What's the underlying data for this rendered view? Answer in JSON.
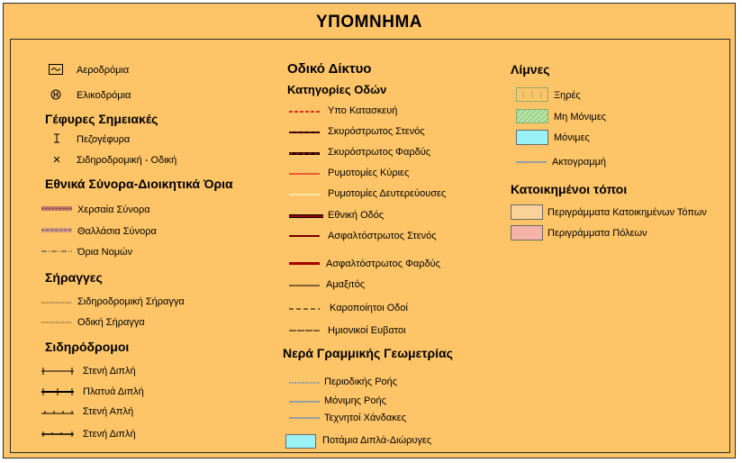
{
  "title": "ΥΠΟΜΝΗΜΑ",
  "col1": {
    "airfields": "Αεροδρόμια",
    "heliports": "Ελικοδρόμια",
    "bridges_heading": "Γέφυρες Σημειακές",
    "footbridge": "Πεζογέφυρα",
    "rail_road_bridge": "Σιδηροδρομική - Οδική",
    "borders_heading": "Εθνικά Σύνορα-Διοικητικά Όρια",
    "land_border": "Χερσαία Σύνορα",
    "sea_border": "Θαλλάσια Σύνορα",
    "prefecture_border": "Όρια Νομών",
    "tunnels_heading": "Σήραγγες",
    "rail_tunnel": "Σιδηροδρομική Σήραγγα",
    "road_tunnel": "Οδική Σήραγγα",
    "railways_heading": "Σιδηρόδρομοι",
    "rail1": "Στενή Διπλή",
    "rail2": "Πλατυά Διπλή",
    "rail3": "Στενή Απλή",
    "rail4": "Στενή Διπλή"
  },
  "col2": {
    "heading": "Οδικό Δίκτυο",
    "subheading": "Κατηγορίες Οδών",
    "roads": [
      "Υπο Κατασκευή",
      "Σκυρόστρωτος Στενός",
      "Σκυρόστρωτος Φαρδύς",
      "Ρυμοτομίες Κύριες",
      "Ρυμοτομίες Δευτερεύουσες",
      "Εθνική Οδός",
      "Ασφαλτόστρωτος Στενός",
      "Ασφαλτόστρωτος Φαρδύς",
      "Αμαξιτός",
      "Καροποίητοι Οδοί",
      "Ημιονικοί Ευβατοι"
    ],
    "water_heading": "Νερά Γραμμικής Γεωμετρίας",
    "water": [
      "Περιοδικής Ροής",
      "Μόνιμης Ροής",
      "Τεχνητοί Χάνδακες",
      "Ποτάμια Διπλά-Διώρυγες"
    ]
  },
  "col3": {
    "lakes_heading": "Λίμνες",
    "dry": "Ξηρές",
    "non_permanent": "Μη Μόνιμες",
    "permanent": "Μόνιμες",
    "coastline": "Ακτογραμμή",
    "settlements_heading": "Κατοικημένοι τόποι",
    "settlement_outlines": "Περιγράμματα Κατοικημένων Τόπων",
    "city_outlines": "Περιγράμματα Πόλεων"
  },
  "colors": {
    "background": "#fdc567",
    "lake": "#99f3f6",
    "settlement": "#fbd19a",
    "city": "#f6b3a8",
    "road_red": "#cc0000",
    "water_blue": "#2f7ad6"
  }
}
